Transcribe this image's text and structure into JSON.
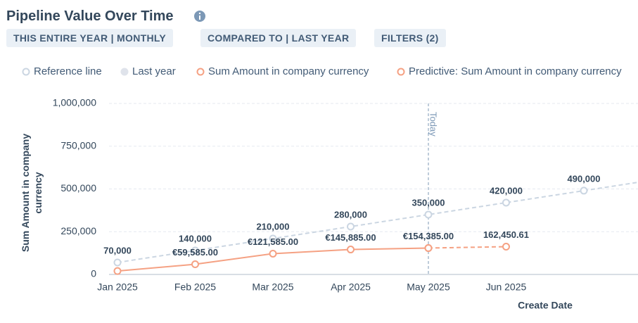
{
  "header": {
    "title": "Pipeline Value Over Time",
    "filters": [
      "THIS ENTIRE YEAR | MONTHLY",
      "COMPARED TO | LAST YEAR",
      "FILTERS (2)"
    ]
  },
  "chart_data": {
    "type": "line",
    "categories": [
      "Jan 2025",
      "Feb 2025",
      "Mar 2025",
      "Apr 2025",
      "May 2025",
      "Jun 2025",
      null
    ],
    "series": [
      {
        "name": "Reference line",
        "color": "#cbd6e2",
        "dashed": true,
        "hollow": true,
        "values": [
          70000,
          140000,
          210000,
          280000,
          350000,
          420000,
          490000
        ],
        "value_labels": [
          "70,000",
          "140,000",
          "210,000",
          "280,000",
          "350,000",
          "420,000",
          "490,000"
        ]
      },
      {
        "name": "Last year",
        "color": "#dfe3eb",
        "dashed": false,
        "hollow": false,
        "values": [
          null,
          null,
          null,
          null,
          null,
          null,
          null
        ]
      },
      {
        "name": "Sum Amount in company currency",
        "color": "#f5a183",
        "dashed": false,
        "hollow": true,
        "values": [
          20000,
          59585,
          121585,
          145885,
          154385,
          null,
          null
        ],
        "value_labels": [
          null,
          "€59,585.00",
          "€121,585.00",
          "€145,885.00",
          "€154,385.00",
          null,
          null
        ]
      },
      {
        "name": "Predictive: Sum Amount in company currency",
        "color": "#f5a183",
        "dashed": true,
        "hollow": true,
        "values": [
          null,
          null,
          null,
          null,
          154385,
          162450.61,
          null
        ],
        "value_labels": [
          null,
          null,
          null,
          null,
          null,
          "162,450.61",
          null
        ]
      }
    ],
    "xlabel": "Create Date",
    "ylabel": "Sum Amount in company currency",
    "ylim": [
      0,
      1000000
    ],
    "yticks": [
      0,
      {
        "value": 250000,
        "label": "250,000"
      },
      {
        "value": 500000,
        "label": "500,000"
      },
      {
        "value": 750000,
        "label": "750,000"
      },
      {
        "value": 1000000,
        "label": "1,000,000"
      }
    ],
    "grid": true,
    "annotations": [
      {
        "text": "Today",
        "x": "May 2025"
      }
    ]
  }
}
